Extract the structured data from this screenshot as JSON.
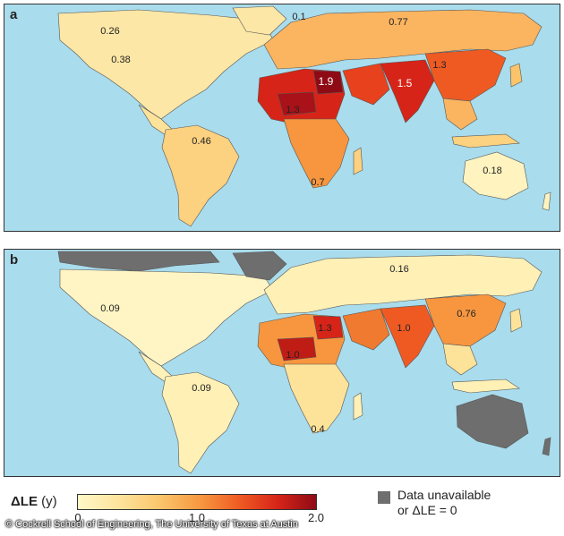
{
  "panels": [
    {
      "letter": "a",
      "values": [
        "0.26",
        "0.1",
        "0.77",
        "0.38",
        "1.9",
        "1.5",
        "1.3",
        "1.3",
        "0.46",
        "0.7",
        "0.18"
      ]
    },
    {
      "letter": "b",
      "values": [
        "0.16",
        "0.09",
        "0.76",
        "1.3",
        "1.0",
        "1.0",
        "0.09",
        "0.4"
      ]
    }
  ],
  "legend": {
    "title": "ΔLE",
    "unit": "(y)",
    "ticks": [
      "0",
      "1.0",
      "2.0"
    ],
    "scale_range": [
      0,
      2.0
    ],
    "colors": [
      "#fff8c8",
      "#fde39a",
      "#fbc46a",
      "#f7963f",
      "#ef5a23",
      "#d62418",
      "#8e0b16"
    ],
    "unavailable_color": "#6e6e6e",
    "unavailable_line1": "Data unavailable",
    "unavailable_line2": "or ΔLE = 0"
  },
  "ocean_color": "#a9dcec",
  "credit": "© Cockrell School of Engineering, The University of Texas at Austin"
}
